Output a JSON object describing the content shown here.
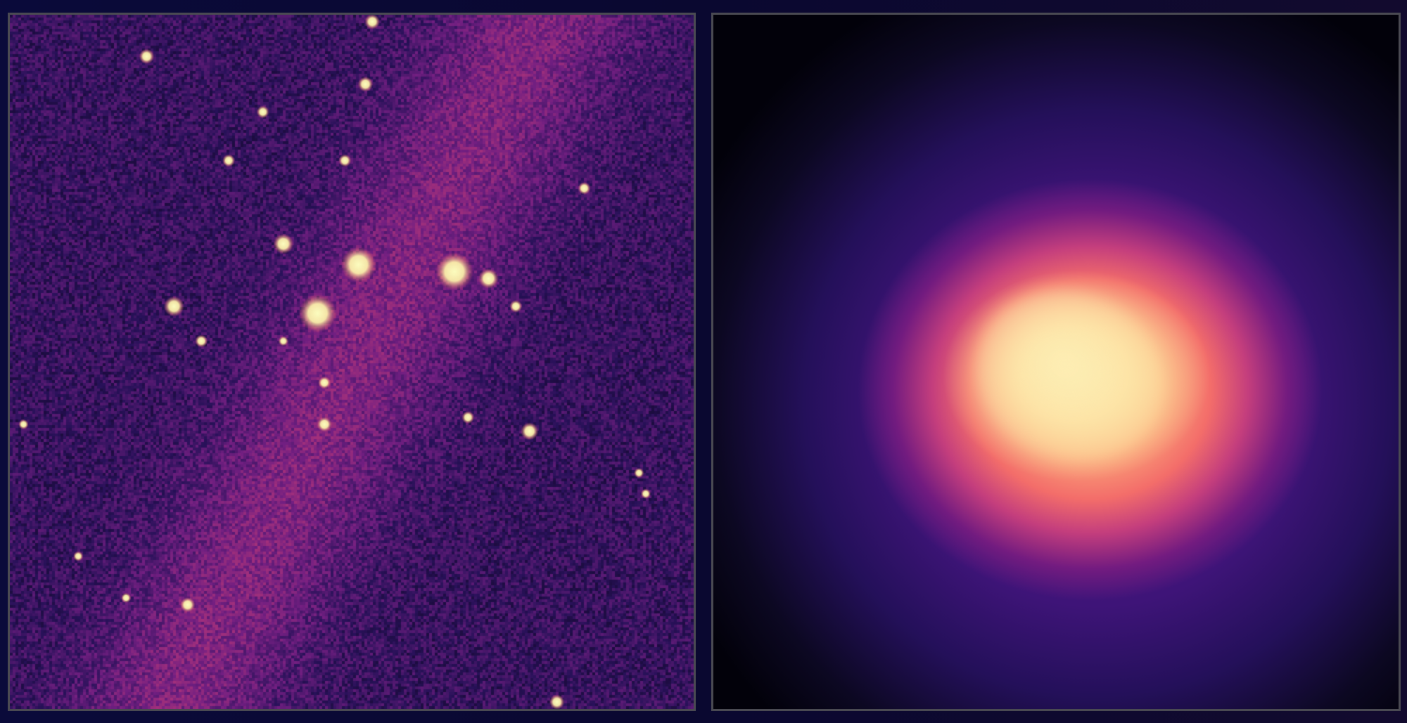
{
  "colors": {
    "background": "#0a0a3a",
    "panel_border": "#4a4a52",
    "colormap": "magma"
  }
}
